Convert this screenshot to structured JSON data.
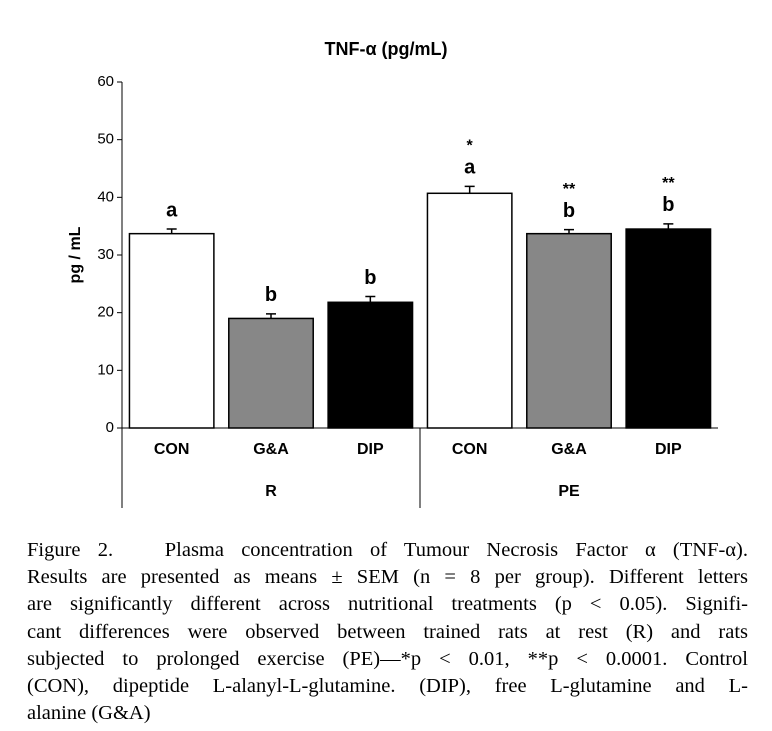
{
  "chart_data": {
    "type": "bar",
    "title": "TNF-α (pg/mL)",
    "y_label": "pg / mL",
    "categories": [
      "CON",
      "G&A",
      "DIP",
      "CON",
      "G&A",
      "DIP"
    ],
    "groups": [
      "R",
      "PE"
    ],
    "values": [
      33.7,
      19,
      21.8,
      40.7,
      33.7,
      34.5
    ],
    "errors": [
      0.8,
      0.8,
      1.0,
      1.2,
      0.7,
      0.9
    ],
    "colors": [
      "#ffffff",
      "#878787",
      "#000000",
      "#ffffff",
      "#878787",
      "#000000"
    ],
    "letters": [
      "a",
      "b",
      "b",
      "a",
      "b",
      "b"
    ],
    "stars": [
      null,
      null,
      null,
      "*",
      "**",
      "**"
    ],
    "ylim": [
      0,
      60
    ],
    "yticks": [
      0,
      10,
      20,
      30,
      40,
      50,
      60
    ],
    "grid": false
  },
  "caption": [
    "Figure 2.   Plasma concentration of Tumour Necrosis Factor α (TNF-α).",
    "Results are presented as means ± SEM (n = 8 per group). Different letters",
    "are significantly different across nutritional treatments (p < 0.05). Signifi-",
    "cant differences were observed between trained rats at rest (R) and rats",
    "subjected to prolonged exercise (PE)—*p < 0.01, **p < 0.0001. Control",
    "(CON), dipeptide L-alanyl-L-glutamine. (DIP), free L-glutamine and L-",
    "alanine (G&A)"
  ]
}
